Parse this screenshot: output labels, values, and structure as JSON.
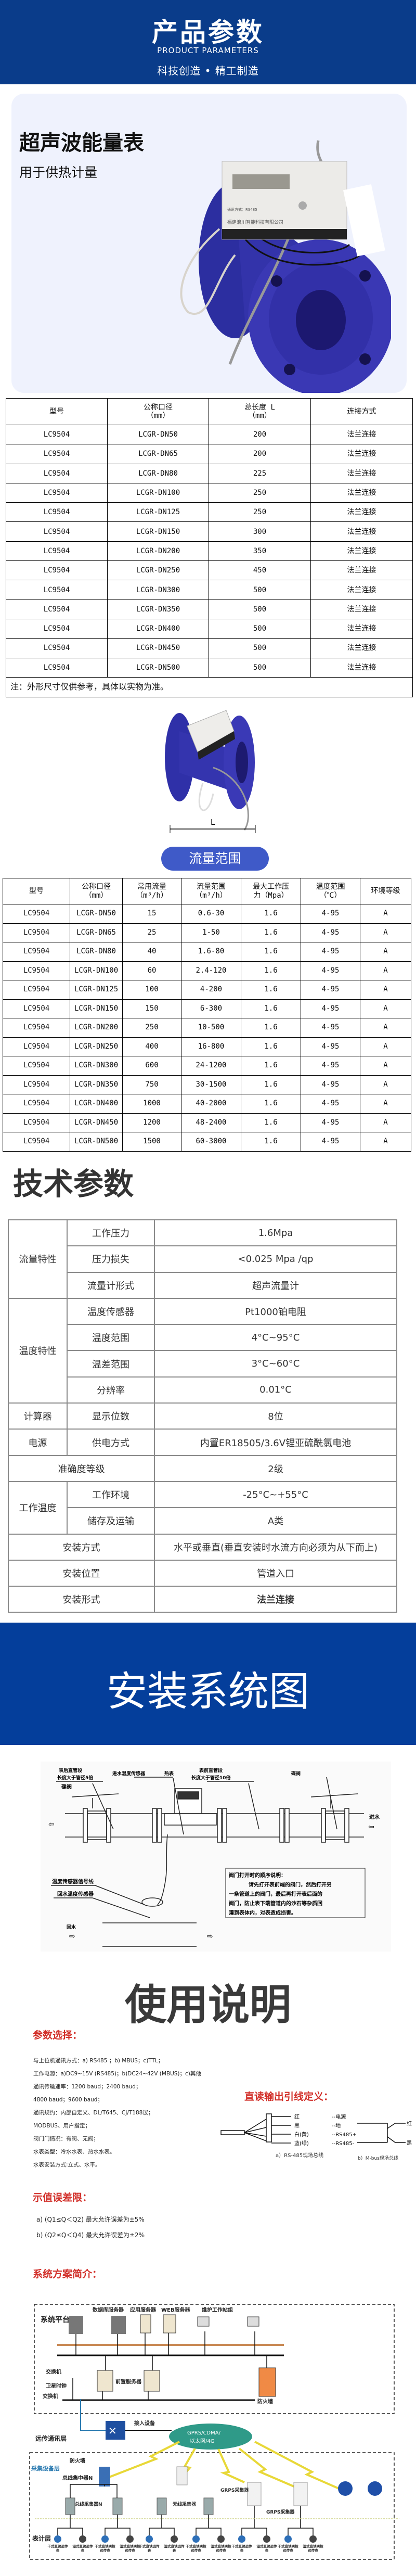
{
  "header": {
    "title": "产品参数",
    "subtitle_en": "PRODUCT PARAMETERS",
    "slogan": "科技创造 • 精工制造",
    "bg_color": "#0a3c8a"
  },
  "product": {
    "name": "超声波能量表",
    "usage": "用于供热计量",
    "meter_brand": "福建浪川智能科技有限公司",
    "meter_comm": "通讯方式：RS485"
  },
  "dimension_table": {
    "headers": [
      "型号",
      "公称口径\n（mm）",
      "总长度 L\n（mm）",
      "连接方式"
    ],
    "rows": [
      [
        "LC9504",
        "LCGR-DN50",
        "200",
        "法兰连接"
      ],
      [
        "LC9504",
        "LCGR-DN65",
        "200",
        "法兰连接"
      ],
      [
        "LC9504",
        "LCGR-DN80",
        "225",
        "法兰连接"
      ],
      [
        "LC9504",
        "LCGR-DN100",
        "250",
        "法兰连接"
      ],
      [
        "LC9504",
        "LCGR-DN125",
        "250",
        "法兰连接"
      ],
      [
        "LC9504",
        "LCGR-DN150",
        "300",
        "法兰连接"
      ],
      [
        "LC9504",
        "LCGR-DN200",
        "350",
        "法兰连接"
      ],
      [
        "LC9504",
        "LCGR-DN250",
        "450",
        "法兰连接"
      ],
      [
        "LC9504",
        "LCGR-DN300",
        "500",
        "法兰连接"
      ],
      [
        "LC9504",
        "LCGR-DN350",
        "500",
        "法兰连接"
      ],
      [
        "LC9504",
        "LCGR-DN400",
        "500",
        "法兰连接"
      ],
      [
        "LC9504",
        "LCGR-DN450",
        "500",
        "法兰连接"
      ],
      [
        "LC9504",
        "LCGR-DN500",
        "500",
        "法兰连接"
      ]
    ],
    "note": "注：外形尺寸仅供参考，具体以实物为准。"
  },
  "dimension_label": "L",
  "flow_button": {
    "label": "流量范围",
    "color": "#3f5ac8"
  },
  "flow_table": {
    "headers": [
      "型号",
      "公称口径\n（mm）",
      "常用流量\n（m³/h）",
      "流量范围\n（m³/h）",
      "最大工作压\n力（Mpa）",
      "温度范围\n（℃）",
      "环境等级"
    ],
    "rows": [
      [
        "LC9504",
        "LCGR-DN50",
        "15",
        "0.6-30",
        "1.6",
        "4-95",
        "A"
      ],
      [
        "LC9504",
        "LCGR-DN65",
        "25",
        "1-50",
        "1.6",
        "4-95",
        "A"
      ],
      [
        "LC9504",
        "LCGR-DN80",
        "40",
        "1.6-80",
        "1.6",
        "4-95",
        "A"
      ],
      [
        "LC9504",
        "LCGR-DN100",
        "60",
        "2.4-120",
        "1.6",
        "4-95",
        "A"
      ],
      [
        "LC9504",
        "LCGR-DN125",
        "100",
        "4-200",
        "1.6",
        "4-95",
        "A"
      ],
      [
        "LC9504",
        "LCGR-DN150",
        "150",
        "6-300",
        "1.6",
        "4-95",
        "A"
      ],
      [
        "LC9504",
        "LCGR-DN200",
        "250",
        "10-500",
        "1.6",
        "4-95",
        "A"
      ],
      [
        "LC9504",
        "LCGR-DN250",
        "400",
        "16-800",
        "1.6",
        "4-95",
        "A"
      ],
      [
        "LC9504",
        "LCGR-DN300",
        "600",
        "24-1200",
        "1.6",
        "4-95",
        "A"
      ],
      [
        "LC9504",
        "LCGR-DN350",
        "750",
        "30-1500",
        "1.6",
        "4-95",
        "A"
      ],
      [
        "LC9504",
        "LCGR-DN400",
        "1000",
        "40-2000",
        "1.6",
        "4-95",
        "A"
      ],
      [
        "LC9504",
        "LCGR-DN450",
        "1200",
        "48-2400",
        "1.6",
        "4-95",
        "A"
      ],
      [
        "LC9504",
        "LCGR-DN500",
        "1500",
        "60-3000",
        "1.6",
        "4-95",
        "A"
      ]
    ]
  },
  "tech": {
    "title": "技术参数",
    "groups": [
      {
        "group": "流量特性",
        "items": [
          [
            "工作压力",
            "1.6Mpa"
          ],
          [
            "压力损失",
            "<0.025 Mpa /qp"
          ],
          [
            "流量计形式",
            "超声流量计"
          ]
        ]
      },
      {
        "group": "温度特性",
        "items": [
          [
            "温度传感器",
            "Pt1000铂电阻"
          ],
          [
            "温度范围",
            "4°C~95°C"
          ],
          [
            "温差范围",
            "3°C~60°C"
          ],
          [
            "分辨率",
            "0.01°C"
          ]
        ]
      },
      {
        "group": "计算器",
        "items": [
          [
            "显示位数",
            "8位"
          ]
        ]
      },
      {
        "group": "电源",
        "items": [
          [
            "供电方式",
            "内置ER18505/3.6V锂亚硫酰氯电池"
          ]
        ]
      },
      {
        "group": "准确度等级",
        "span": true,
        "value": "2级"
      },
      {
        "group": "工作温度",
        "items": [
          [
            "工作环境",
            "-25°C~+55°C"
          ],
          [
            "储存及运输",
            "A类"
          ]
        ]
      },
      {
        "group": "安装方式",
        "span": true,
        "value": "水平或垂直(垂直安装时水流方向必须为从下而上)"
      },
      {
        "group": "安装位置",
        "span": true,
        "value": "管道入口"
      },
      {
        "group": "安装形式",
        "span": true,
        "value": "法兰连接"
      }
    ]
  },
  "install": {
    "banner_title": "安装系统图",
    "banner_color": "#043e9b",
    "labels": {
      "after_pipe": "表后直管段",
      "after_pipe2": "长度大于管径5倍",
      "inlet_sensor": "进水温度传感器",
      "heat_meter": "热表",
      "before_pipe": "表前直管段",
      "before_pipe2": "长度大于管径10倍",
      "valve_left": "碟阀",
      "valve_right": "碟阀",
      "inlet": "进水",
      "signal_line": "温度传感器信号线",
      "return_sensor": "回水温度传感器",
      "return": "回水"
    },
    "note_title": "阀门打开时的顺序说明：",
    "note_lines": [
      "请先打开表前端的阀门，然后打开另",
      "一条管道上的阀门，最后再打开表后面的",
      "阀门，防止表下端管道内的沙石等杂质回",
      "灌到表体内，对表造成损害。"
    ]
  },
  "usage": {
    "title": "使用说明",
    "params_title": "参数选择：",
    "params": [
      "与上位机通讯方式：a) RS485 ；b) MBUS；c)TTL；",
      "工作电源：a)DC9~15V (RS485)；b)DC24~42V (MBUS)；c)其他",
      "通讯传输速率：1200 baud；2400 baud；",
      "4800 baud；9600 baud；",
      "通讯规约：内部自定义、DL/T645、CJ/T188议；",
      "MODBUS、用户指定；",
      "阀门门情况：有阀、无阀；",
      "水表类型：冷水水表、热水水表。",
      "水表安装方式:立式、水平。"
    ],
    "wiring_title": "直读输出引线定义：",
    "wiring_a": [
      [
        "红",
        "--电源"
      ],
      [
        "黑",
        "--地"
      ],
      [
        "白(黄)",
        "--RS485+"
      ],
      [
        "蓝(绿)",
        "--RS485-"
      ]
    ],
    "wiring_a_caption": "a）RS-485现场总线",
    "wiring_b": [
      "红",
      "黑"
    ],
    "wiring_b_caption": "b）M-bus现场总线",
    "error_title": "示值误差限：",
    "errors": [
      "a)   (Q1≤Q＜Q2) 最大允许误差为±5%",
      "b)   (Q2≤Q＜Q4) 最大允许误差为±2%"
    ],
    "system_title": "系统方案简介：",
    "system": {
      "platform": "系统平台",
      "db_server": "数据库服务器",
      "app_server": "应用服务器",
      "web_server": "WEB服务器",
      "workstations": "维护工作站组",
      "switch1": "交换机",
      "sat_clock": "卫星时钟",
      "switch2": "交换机",
      "front_server": "前置服务器",
      "firewall": "防火墙",
      "access": "接入设备",
      "comm_layer": "远传通讯层",
      "firewall2": "防火墙",
      "cloud1": "GPRS/CDMA/",
      "cloud2": "以太网/4G",
      "bus_conc": "总线集中器N",
      "collect_layer": "采集设备层",
      "mbus": "M-BUS",
      "bus_coll": "总线采集器N",
      "wireless": "无线采集器",
      "grps1": "GRPS采集器",
      "grps2": "GRPS采集器",
      "meter_layer": "表计层",
      "meters": [
        "干式直读远传表",
        "湿式直读远传表",
        "干式直读阀控远传表",
        "湿式直读阀控远传表"
      ],
      "red_title_color": "#d2302a"
    }
  }
}
